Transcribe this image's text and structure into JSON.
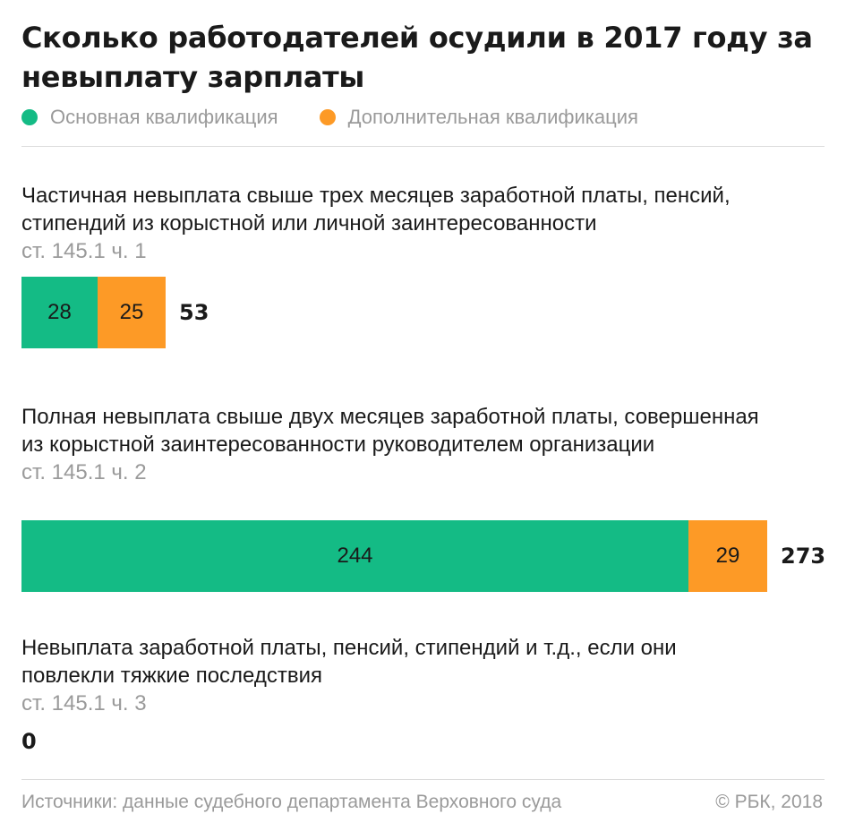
{
  "title": "Сколько работодателей осудили в 2017 году за невыплату зарплаты",
  "colors": {
    "primary": "#14bb85",
    "additional": "#fd9a26"
  },
  "chart_data": {
    "type": "bar",
    "orientation": "horizontal",
    "stacked": true,
    "title": "Сколько работодателей осудили в 2017 году за невыплату зарплаты",
    "legend": {
      "placement": "top-left",
      "entries": [
        "Основная квалификация",
        "Дополнительная квалификация"
      ]
    },
    "series": [
      {
        "name": "Основная квалификация",
        "color": "#14bb85",
        "values": [
          28,
          244,
          0
        ]
      },
      {
        "name": "Дополнительная квалификация",
        "color": "#fd9a26",
        "values": [
          25,
          29,
          0
        ]
      }
    ],
    "categories": [
      {
        "description": "Частичная невыплата свыше трех месяцев заработной платы, пенсий, стипендий из корыстной или личной заинтересованности",
        "article": "ст. 145.1 ч. 1",
        "primary": 28,
        "additional": 25,
        "total": 53
      },
      {
        "description": "Полная невыплата свыше двух месяцев заработной платы, совершенная из корыстной заинтересованности руководителем организации",
        "article": "ст. 145.1 ч. 2",
        "primary": 244,
        "additional": 29,
        "total": 273
      },
      {
        "description": "Невыплата заработной платы, пенсий, стипендий и т.д., если они повлекли тяжкие последствия",
        "article": "ст. 145.1 ч. 3",
        "primary": 0,
        "additional": 0,
        "total": 0
      }
    ],
    "xlim": [
      0,
      273
    ],
    "grid": false
  },
  "footer": {
    "source": "Источники: данные судебного департамента Верховного суда",
    "copyright": "© РБК, 2018"
  }
}
